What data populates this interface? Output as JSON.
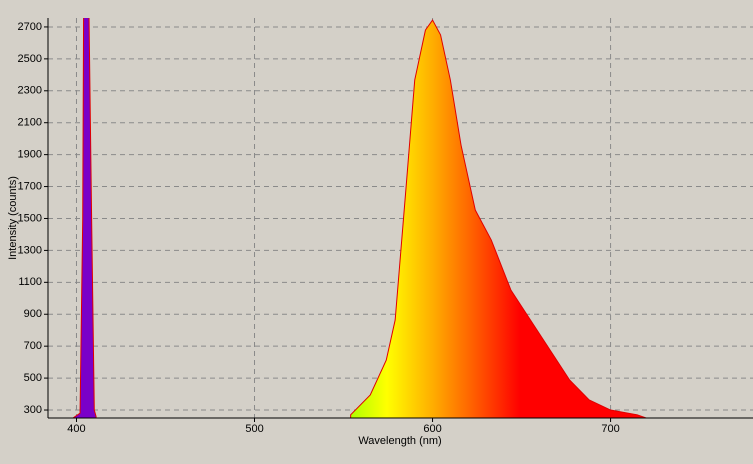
{
  "chart_data": {
    "type": "area",
    "xlabel": "Wavelength (nm)",
    "ylabel": "Intensity (counts)",
    "x": [
      398,
      402,
      403.5,
      404,
      407,
      408.5,
      410,
      411,
      480,
      554,
      565,
      574,
      579,
      585,
      590,
      596,
      600,
      604.5,
      610,
      616,
      624,
      633,
      644,
      655,
      666,
      677,
      688,
      700,
      715,
      720
    ],
    "values": [
      250,
      280,
      1500,
      2800,
      2800,
      1500,
      300,
      260,
      null,
      270,
      394,
      613,
      864,
      1678,
      2368,
      2680,
      2743,
      2650,
      2368,
      1960,
      1553,
      1365,
      1052,
      864,
      676,
      488,
      363,
      300,
      270,
      250
    ],
    "color": "#e00000",
    "xlim": [
      384,
      780
    ],
    "xticks": [
      400,
      500,
      600,
      700
    ],
    "ylim": [
      250,
      2756
    ],
    "yticks": [
      300,
      500,
      700,
      900,
      1100,
      1300,
      1500,
      1700,
      1900,
      2100,
      2300,
      2500,
      2700
    ],
    "grid": true
  }
}
